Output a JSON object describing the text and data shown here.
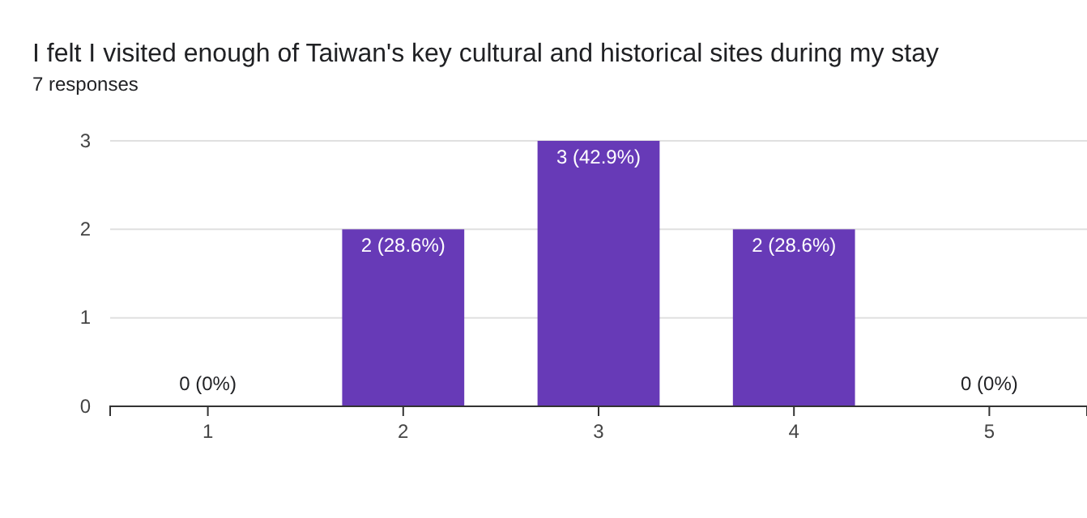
{
  "chart_data": {
    "type": "bar",
    "title": "I felt I visited enough of Taiwan's key cultural and historical sites during my stay",
    "subtitle": "7 responses",
    "categories": [
      "1",
      "2",
      "3",
      "4",
      "5"
    ],
    "values": [
      0,
      2,
      3,
      2,
      0
    ],
    "value_labels": [
      "0 (0%)",
      "2 (28.6%)",
      "3 (42.9%)",
      "2 (28.6%)",
      "0 (0%)"
    ],
    "color": "#673ab7",
    "ylim": [
      0,
      3
    ],
    "yticks": [
      0,
      1,
      2,
      3
    ],
    "grid": "y"
  }
}
